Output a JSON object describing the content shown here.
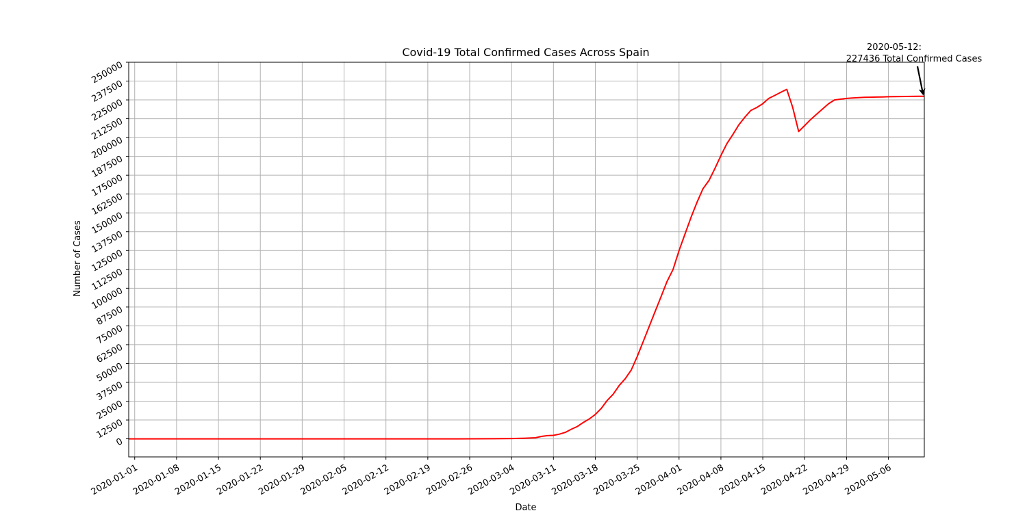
{
  "chart_data": {
    "type": "line",
    "title": "Covid-19 Total Confirmed Cases Across Spain",
    "xlabel": "Date",
    "ylabel": "Number of Cases",
    "x_range": [
      "2019-12-31",
      "2020-05-12"
    ],
    "ylim": [
      -12000,
      250000
    ],
    "yticks": [
      0,
      12500,
      25000,
      37500,
      50000,
      62500,
      75000,
      87500,
      100000,
      112500,
      125000,
      137500,
      150000,
      162500,
      175000,
      187500,
      200000,
      212500,
      225000,
      237500,
      250000
    ],
    "xticks": [
      "2020-01-01",
      "2020-01-08",
      "2020-01-15",
      "2020-01-22",
      "2020-01-29",
      "2020-02-05",
      "2020-02-12",
      "2020-02-19",
      "2020-02-26",
      "2020-03-04",
      "2020-03-11",
      "2020-03-18",
      "2020-03-25",
      "2020-04-01",
      "2020-04-08",
      "2020-04-15",
      "2020-04-22",
      "2020-04-29",
      "2020-05-06"
    ],
    "grid": true,
    "series": [
      {
        "color": "#ff0000",
        "points": [
          [
            "2019-12-31",
            0
          ],
          [
            "2020-01-31",
            0
          ],
          [
            "2020-02-24",
            0
          ],
          [
            "2020-02-27",
            20
          ],
          [
            "2020-03-01",
            70
          ],
          [
            "2020-03-04",
            200
          ],
          [
            "2020-03-06",
            400
          ],
          [
            "2020-03-08",
            700
          ],
          [
            "2020-03-09",
            1600
          ],
          [
            "2020-03-10",
            2100
          ],
          [
            "2020-03-11",
            2300
          ],
          [
            "2020-03-12",
            3100
          ],
          [
            "2020-03-13",
            4300
          ],
          [
            "2020-03-14",
            6400
          ],
          [
            "2020-03-15",
            8200
          ],
          [
            "2020-03-16",
            10900
          ],
          [
            "2020-03-17",
            13200
          ],
          [
            "2020-03-18",
            16200
          ],
          [
            "2020-03-19",
            20200
          ],
          [
            "2020-03-20",
            25500
          ],
          [
            "2020-03-21",
            29700
          ],
          [
            "2020-03-22",
            35400
          ],
          [
            "2020-03-23",
            39900
          ],
          [
            "2020-03-24",
            45600
          ],
          [
            "2020-03-25",
            54500
          ],
          [
            "2020-03-26",
            64500
          ],
          [
            "2020-03-27",
            74500
          ],
          [
            "2020-03-28",
            84500
          ],
          [
            "2020-03-29",
            94500
          ],
          [
            "2020-03-30",
            104500
          ],
          [
            "2020-03-31",
            112500
          ],
          [
            "2020-04-01",
            125000
          ],
          [
            "2020-04-02",
            136000
          ],
          [
            "2020-04-03",
            147000
          ],
          [
            "2020-04-04",
            157000
          ],
          [
            "2020-04-05",
            166000
          ],
          [
            "2020-04-06",
            171500
          ],
          [
            "2020-04-07",
            179500
          ],
          [
            "2020-04-08",
            188000
          ],
          [
            "2020-04-09",
            196000
          ],
          [
            "2020-04-10",
            202000
          ],
          [
            "2020-04-11",
            208500
          ],
          [
            "2020-04-12",
            213500
          ],
          [
            "2020-04-13",
            218000
          ],
          [
            "2020-04-14",
            220000
          ],
          [
            "2020-04-15",
            222500
          ],
          [
            "2020-04-16",
            226000
          ],
          [
            "2020-04-17",
            228000
          ],
          [
            "2020-04-18",
            230000
          ],
          [
            "2020-04-19",
            232000
          ],
          [
            "2020-04-20",
            220000
          ],
          [
            "2020-04-21",
            204000
          ],
          [
            "2020-04-22",
            208000
          ],
          [
            "2020-04-23",
            212000
          ],
          [
            "2020-04-24",
            215500
          ],
          [
            "2020-04-25",
            219000
          ],
          [
            "2020-04-26",
            222500
          ],
          [
            "2020-04-27",
            225000
          ],
          [
            "2020-04-28",
            225500
          ],
          [
            "2020-04-29",
            226000
          ],
          [
            "2020-04-30",
            226300
          ],
          [
            "2020-05-01",
            226500
          ],
          [
            "2020-05-02",
            226700
          ],
          [
            "2020-05-03",
            226800
          ],
          [
            "2020-05-04",
            226900
          ],
          [
            "2020-05-05",
            227000
          ],
          [
            "2020-05-06",
            227100
          ],
          [
            "2020-05-07",
            227200
          ],
          [
            "2020-05-08",
            227250
          ],
          [
            "2020-05-09",
            227300
          ],
          [
            "2020-05-10",
            227350
          ],
          [
            "2020-05-11",
            227400
          ],
          [
            "2020-05-12",
            227436
          ]
        ]
      }
    ],
    "annotation": {
      "lines": [
        "2020-05-12:",
        "227436 Total Confirmed Cases"
      ],
      "target": [
        "2020-05-12",
        227436
      ]
    }
  }
}
